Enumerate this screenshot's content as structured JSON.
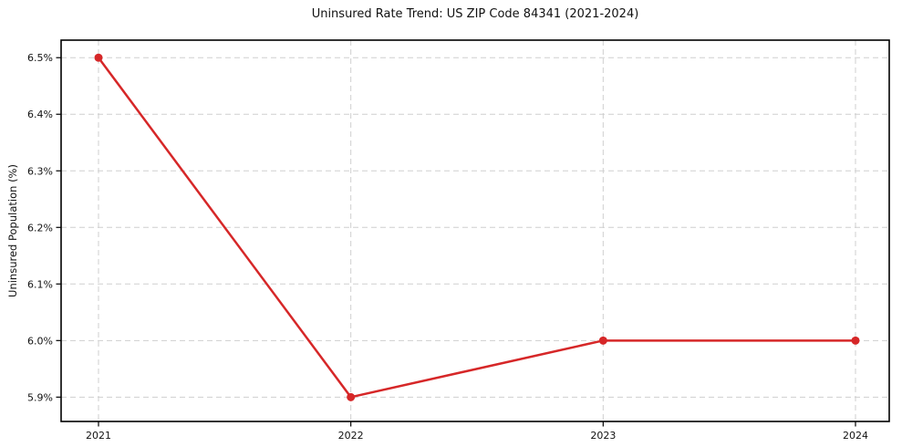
{
  "figure": {
    "background": "#ffffff"
  },
  "chart_data": {
    "type": "line",
    "title": "Uninsured Rate Trend: US ZIP Code 84341 (2021-2024)",
    "xlabel": "",
    "ylabel": "Uninsured Population (%)",
    "categories": [
      "2021",
      "2022",
      "2023",
      "2024"
    ],
    "series": [
      {
        "name": "Uninsured Population (%)",
        "values": [
          6.5,
          5.9,
          6.0,
          6.0
        ],
        "color": "#d62728",
        "marker": "circle",
        "line_width": 2.5,
        "marker_radius": 4.5
      }
    ],
    "y_ticks": [
      5.9,
      6.0,
      6.1,
      6.2,
      6.3,
      6.4,
      6.5
    ],
    "y_tick_labels": [
      "5.9%",
      "6.0%",
      "6.1%",
      "6.2%",
      "6.3%",
      "6.4%",
      "6.5%"
    ],
    "ylim": [
      5.857,
      6.531
    ],
    "grid": true,
    "grid_style": "dashed",
    "legend": "none",
    "colors": {
      "line": "#d62728",
      "grid": "#cfcfcf",
      "axis": "#000000",
      "text": "#111111"
    }
  }
}
